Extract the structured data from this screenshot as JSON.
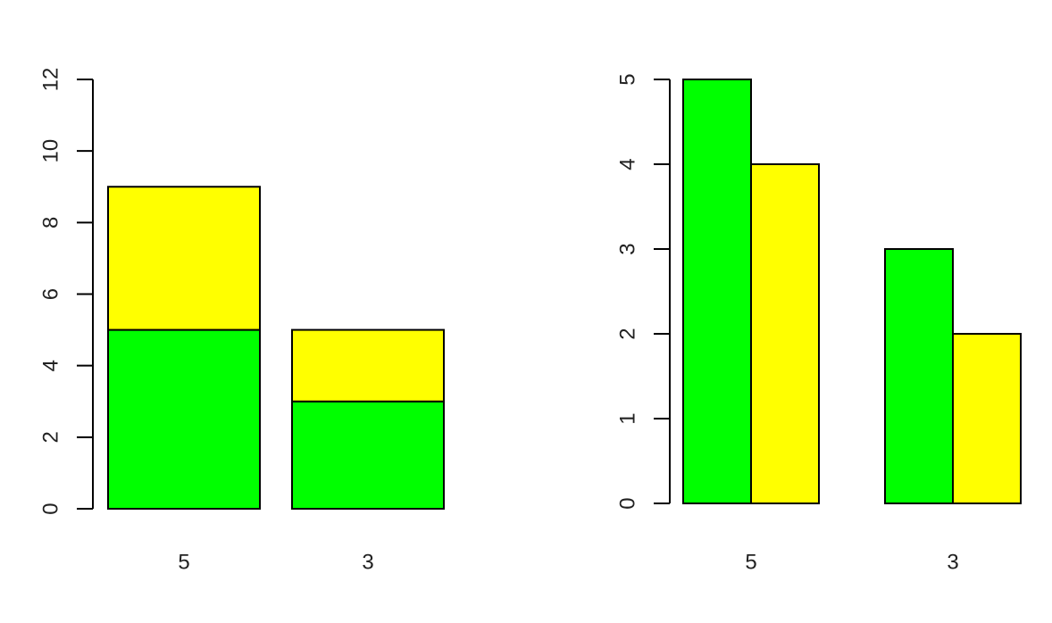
{
  "colors": {
    "series_1": "#00FF00",
    "series_2": "#FFFF00",
    "outline": "#000000",
    "axis": "#000000",
    "background": "#FFFFFF"
  },
  "chart_data": [
    {
      "type": "bar",
      "stacked": true,
      "title": "",
      "xlabel": "",
      "ylabel": "",
      "categories": [
        "5",
        "3"
      ],
      "series": [
        {
          "values": [
            5,
            3
          ],
          "color": "#00FF00"
        },
        {
          "values": [
            4,
            2
          ],
          "color": "#FFFF00"
        }
      ],
      "ylim": [
        0,
        12
      ],
      "yticks": [
        0,
        2,
        4,
        6,
        8,
        10,
        12
      ],
      "grid": false,
      "legend": "none"
    },
    {
      "type": "bar",
      "stacked": false,
      "title": "",
      "xlabel": "",
      "ylabel": "",
      "categories": [
        "5",
        "3"
      ],
      "series": [
        {
          "values": [
            5,
            3
          ],
          "color": "#00FF00"
        },
        {
          "values": [
            4,
            2
          ],
          "color": "#FFFF00"
        }
      ],
      "ylim": [
        0,
        5
      ],
      "yticks": [
        0,
        1,
        2,
        3,
        4,
        5
      ],
      "grid": false,
      "legend": "none"
    }
  ]
}
